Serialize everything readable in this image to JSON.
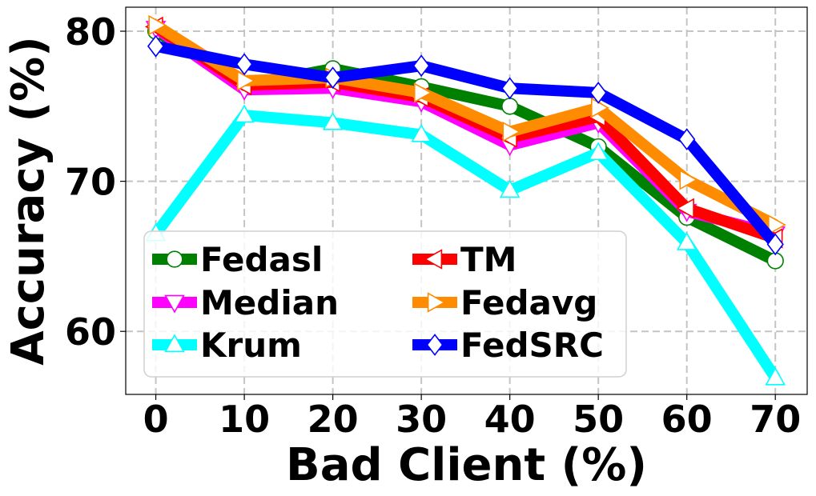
{
  "chart_data": {
    "type": "line",
    "title": "",
    "xlabel": "Bad Client (%)",
    "ylabel": "Accuracy (%)",
    "x": [
      0,
      10,
      20,
      30,
      40,
      50,
      60,
      70
    ],
    "x_tick_labels": [
      "0",
      "10",
      "20",
      "30",
      "40",
      "50",
      "60",
      "70"
    ],
    "y_ticks": [
      60,
      70,
      80
    ],
    "y_tick_labels": [
      "60",
      "70",
      "80"
    ],
    "xlim": [
      -3.4,
      73.6
    ],
    "ylim": [
      55.8,
      81.6
    ],
    "grid": true,
    "legend_position": "lower-left",
    "series": [
      {
        "name": "Fedasl",
        "color": "#008000",
        "marker": "circle",
        "values": [
          80.0,
          76.4,
          77.5,
          76.3,
          75.0,
          72.3,
          67.6,
          64.7
        ]
      },
      {
        "name": "Median",
        "color": "#ff00ff",
        "marker": "triangle-down",
        "values": [
          80.2,
          76.1,
          76.2,
          75.3,
          72.4,
          73.9,
          68.0,
          66.5
        ]
      },
      {
        "name": "Krum",
        "color": "#00ffff",
        "marker": "triangle-up",
        "values": [
          66.5,
          74.4,
          73.9,
          73.1,
          69.4,
          71.9,
          65.9,
          56.9
        ]
      },
      {
        "name": "TM",
        "color": "#ff0000",
        "marker": "triangle-left",
        "values": [
          80.3,
          76.4,
          76.6,
          75.6,
          72.9,
          74.3,
          68.2,
          66.2
        ]
      },
      {
        "name": "Fedavg",
        "color": "#ff8c00",
        "marker": "triangle-right",
        "values": [
          80.4,
          76.7,
          76.9,
          75.9,
          73.3,
          74.9,
          70.1,
          67.1
        ]
      },
      {
        "name": "FedSRC",
        "color": "#0000ff",
        "marker": "diamond",
        "values": [
          79.0,
          77.8,
          76.9,
          77.7,
          76.2,
          75.9,
          72.8,
          65.8
        ]
      }
    ]
  }
}
